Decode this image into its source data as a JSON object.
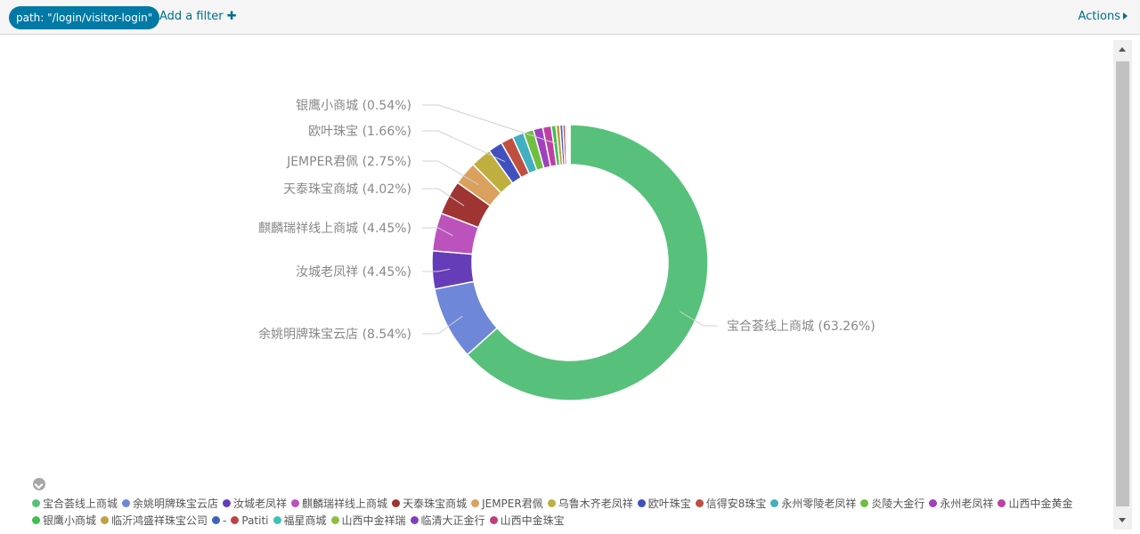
{
  "filter_bar": {
    "filter_pill": "path: \"/login/visitor-login\"",
    "add_filter": "Add a filter",
    "actions": "Actions"
  },
  "chart_data": {
    "type": "pie",
    "donut": true,
    "slices": [
      {
        "label": "宝合荟线上商城",
        "percent": 63.26,
        "color": "#57c17b",
        "show_label": true
      },
      {
        "label": "余姚明牌珠宝云店",
        "percent": 8.54,
        "color": "#6f87d8",
        "show_label": true
      },
      {
        "label": "汝城老凤祥",
        "percent": 4.45,
        "color": "#663db8",
        "show_label": true
      },
      {
        "label": "麒麟瑞祥线上商城",
        "percent": 4.45,
        "color": "#bc52bc",
        "show_label": true
      },
      {
        "label": "天泰珠宝商城",
        "percent": 4.02,
        "color": "#9e3533",
        "show_label": true
      },
      {
        "label": "JEMPER君佩",
        "percent": 2.75,
        "color": "#daa05d",
        "show_label": true
      },
      {
        "label": "乌鲁木齐老凤祥",
        "percent": 2.45,
        "color": "#bfaf40",
        "show_label": false
      },
      {
        "label": "欧叶珠宝",
        "percent": 1.66,
        "color": "#4050bf",
        "show_label": true
      },
      {
        "label": "信得安8珠宝",
        "percent": 1.45,
        "color": "#bf5040",
        "show_label": false
      },
      {
        "label": "永州零陵老凤祥",
        "percent": 1.35,
        "color": "#40afbf",
        "show_label": false
      },
      {
        "label": "炎陵大金行",
        "percent": 1.2,
        "color": "#70bf40",
        "show_label": false
      },
      {
        "label": "永州老凤祥",
        "percent": 1.1,
        "color": "#9f40bf",
        "show_label": false
      },
      {
        "label": "山西中金黄金",
        "percent": 1.0,
        "color": "#bf40a4",
        "show_label": false
      },
      {
        "label": "银鹰小商城",
        "percent": 0.54,
        "color": "#40bf4f",
        "show_label": true
      },
      {
        "label": "临沂鸿盛祥珠宝公司",
        "percent": 0.45,
        "color": "#bf9f40",
        "show_label": false
      },
      {
        "label": "-",
        "percent": 0.35,
        "color": "#4060bf",
        "show_label": false
      },
      {
        "label": "Patiti",
        "percent": 0.3,
        "color": "#bf4045",
        "show_label": false
      },
      {
        "label": "福星商城",
        "percent": 0.2,
        "color": "#40bfb5",
        "show_label": false
      },
      {
        "label": "山西中金祥瑞",
        "percent": 0.15,
        "color": "#8abf40",
        "show_label": false
      },
      {
        "label": "临清大正金行",
        "percent": 0.1,
        "color": "#8040bf",
        "show_label": false
      },
      {
        "label": "山西中金珠宝",
        "percent": 0.08,
        "color": "#bf407a",
        "show_label": false
      }
    ]
  },
  "legend_rows": [
    [
      {
        "label": "宝合荟线上商城",
        "color": "#57c17b"
      },
      {
        "label": "余姚明牌珠宝云店",
        "color": "#6f87d8"
      },
      {
        "label": "汝城老凤祥",
        "color": "#663db8"
      },
      {
        "label": "麒麟瑞祥线上商城",
        "color": "#bc52bc"
      },
      {
        "label": "天泰珠宝商城",
        "color": "#9e3533"
      },
      {
        "label": "JEMPER君佩",
        "color": "#daa05d"
      },
      {
        "label": "乌鲁木齐老凤祥",
        "color": "#bfaf40"
      },
      {
        "label": "欧叶珠宝",
        "color": "#4050bf"
      },
      {
        "label": "信得安8珠宝",
        "color": "#bf5040"
      },
      {
        "label": "永州零陵老凤祥",
        "color": "#40afbf"
      },
      {
        "label": "炎陵大金行",
        "color": "#70bf40"
      },
      {
        "label": "永州老凤祥",
        "color": "#9f40bf"
      },
      {
        "label": "山西中金黄金",
        "color": "#bf40a4"
      }
    ],
    [
      {
        "label": "银鹰小商城",
        "color": "#40bf4f"
      },
      {
        "label": "临沂鸿盛祥珠宝公司",
        "color": "#bf9f40"
      },
      {
        "label": "-",
        "color": "#4060bf"
      },
      {
        "label": "Patiti",
        "color": "#bf4045"
      },
      {
        "label": "福星商城",
        "color": "#40bfb5"
      },
      {
        "label": "山西中金祥瑞",
        "color": "#8abf40"
      },
      {
        "label": "临清大正金行",
        "color": "#8040bf"
      },
      {
        "label": "山西中金珠宝",
        "color": "#bf407a"
      }
    ]
  ]
}
